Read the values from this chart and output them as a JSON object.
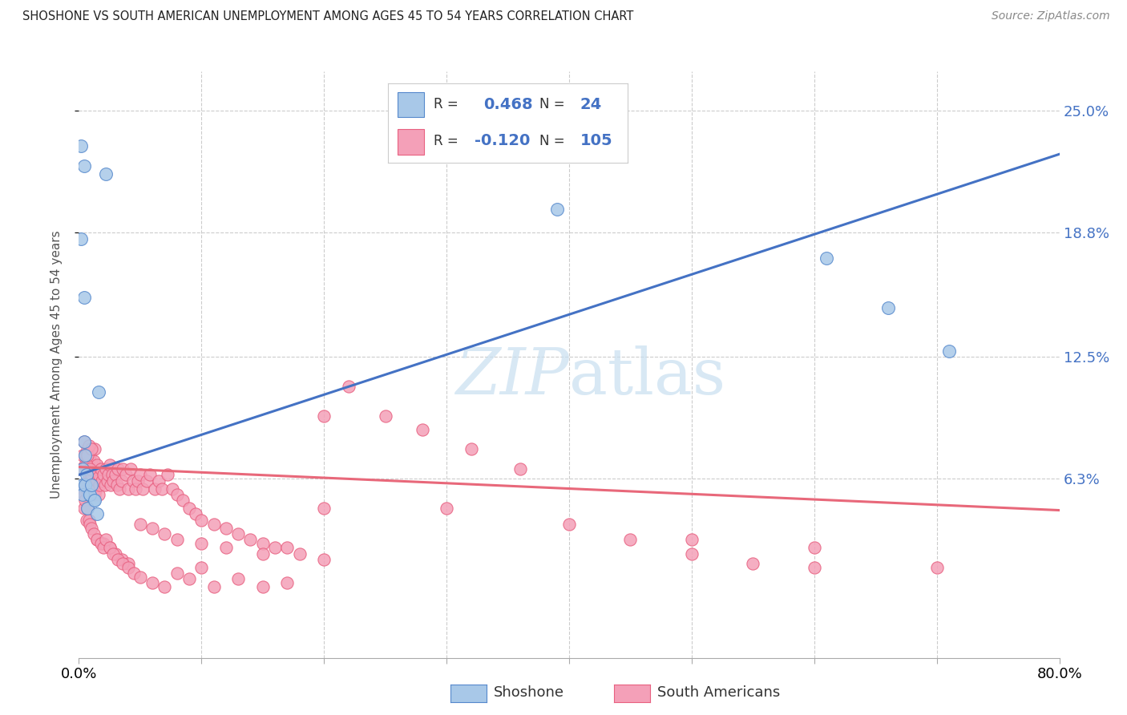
{
  "title": "SHOSHONE VS SOUTH AMERICAN UNEMPLOYMENT AMONG AGES 45 TO 54 YEARS CORRELATION CHART",
  "source": "Source: ZipAtlas.com",
  "ylabel": "Unemployment Among Ages 45 to 54 years",
  "xlim": [
    0.0,
    0.8
  ],
  "ylim": [
    -0.028,
    0.27
  ],
  "ytick_vals": [
    0.063,
    0.125,
    0.188,
    0.25
  ],
  "ytick_labels": [
    "6.3%",
    "12.5%",
    "18.8%",
    "25.0%"
  ],
  "xtick_vals": [
    0.0,
    0.1,
    0.2,
    0.3,
    0.4,
    0.5,
    0.6,
    0.7,
    0.8
  ],
  "xtick_labels": [
    "0.0%",
    "",
    "",
    "",
    "",
    "",
    "",
    "",
    "80.0%"
  ],
  "shoshone_R": 0.468,
  "shoshone_N": 24,
  "sa_R": -0.12,
  "sa_N": 105,
  "blue_scatter": "#A8C8E8",
  "pink_scatter": "#F4A0B8",
  "blue_edge": "#5588CC",
  "pink_edge": "#E86080",
  "blue_line": "#4472C4",
  "pink_line": "#E8687A",
  "watermark_color": "#C8DFF0",
  "blue_line_x": [
    0.0,
    0.8
  ],
  "blue_line_y": [
    0.065,
    0.228
  ],
  "pink_line_x": [
    0.0,
    0.8
  ],
  "pink_line_y": [
    0.069,
    0.047
  ],
  "shoshone_x": [
    0.002,
    0.004,
    0.022,
    0.002,
    0.004,
    0.004,
    0.005,
    0.003,
    0.003,
    0.008,
    0.012,
    0.016,
    0.003,
    0.005,
    0.006,
    0.007,
    0.009,
    0.01,
    0.013,
    0.015,
    0.39,
    0.61,
    0.66,
    0.71
  ],
  "shoshone_y": [
    0.232,
    0.222,
    0.218,
    0.185,
    0.155,
    0.082,
    0.075,
    0.068,
    0.06,
    0.055,
    0.052,
    0.107,
    0.055,
    0.06,
    0.065,
    0.048,
    0.055,
    0.06,
    0.052,
    0.045,
    0.2,
    0.175,
    0.15,
    0.128
  ],
  "sa_x": [
    0.002,
    0.003,
    0.003,
    0.004,
    0.004,
    0.005,
    0.005,
    0.006,
    0.006,
    0.007,
    0.007,
    0.008,
    0.008,
    0.009,
    0.009,
    0.01,
    0.01,
    0.011,
    0.011,
    0.012,
    0.012,
    0.013,
    0.013,
    0.014,
    0.014,
    0.015,
    0.015,
    0.016,
    0.016,
    0.017,
    0.018,
    0.019,
    0.02,
    0.021,
    0.022,
    0.023,
    0.024,
    0.025,
    0.026,
    0.027,
    0.028,
    0.03,
    0.031,
    0.032,
    0.033,
    0.035,
    0.036,
    0.038,
    0.04,
    0.042,
    0.044,
    0.046,
    0.048,
    0.05,
    0.052,
    0.055,
    0.058,
    0.062,
    0.065,
    0.068,
    0.072,
    0.076,
    0.08,
    0.085,
    0.09,
    0.095,
    0.1,
    0.11,
    0.12,
    0.13,
    0.14,
    0.15,
    0.16,
    0.17,
    0.18,
    0.2,
    0.22,
    0.25,
    0.28,
    0.32,
    0.36,
    0.4,
    0.45,
    0.5,
    0.55,
    0.6,
    0.006,
    0.007,
    0.008,
    0.009,
    0.01,
    0.015,
    0.02,
    0.025,
    0.03,
    0.035,
    0.04,
    0.05,
    0.06,
    0.07,
    0.08,
    0.1,
    0.12,
    0.15,
    0.2
  ],
  "sa_y": [
    0.068,
    0.075,
    0.058,
    0.082,
    0.055,
    0.07,
    0.06,
    0.075,
    0.058,
    0.078,
    0.062,
    0.065,
    0.07,
    0.062,
    0.075,
    0.065,
    0.058,
    0.068,
    0.07,
    0.072,
    0.06,
    0.055,
    0.078,
    0.065,
    0.058,
    0.07,
    0.062,
    0.065,
    0.055,
    0.06,
    0.068,
    0.062,
    0.065,
    0.06,
    0.068,
    0.062,
    0.065,
    0.07,
    0.06,
    0.065,
    0.062,
    0.065,
    0.06,
    0.068,
    0.058,
    0.062,
    0.068,
    0.065,
    0.058,
    0.068,
    0.062,
    0.058,
    0.062,
    0.065,
    0.058,
    0.062,
    0.065,
    0.058,
    0.062,
    0.058,
    0.065,
    0.058,
    0.055,
    0.052,
    0.048,
    0.045,
    0.042,
    0.04,
    0.038,
    0.035,
    0.032,
    0.03,
    0.028,
    0.028,
    0.025,
    0.095,
    0.11,
    0.095,
    0.088,
    0.078,
    0.068,
    0.04,
    0.032,
    0.025,
    0.02,
    0.018,
    0.07,
    0.075,
    0.08,
    0.068,
    0.078,
    0.032,
    0.03,
    0.028,
    0.025,
    0.022,
    0.02,
    0.04,
    0.038,
    0.035,
    0.032,
    0.03,
    0.028,
    0.025,
    0.022
  ],
  "sa_x_extra": [
    0.004,
    0.005,
    0.006,
    0.007,
    0.008,
    0.009,
    0.01,
    0.012,
    0.015,
    0.018,
    0.02,
    0.022,
    0.025,
    0.028,
    0.032,
    0.036,
    0.04,
    0.045,
    0.05,
    0.06,
    0.07,
    0.08,
    0.09,
    0.1,
    0.11,
    0.13,
    0.15,
    0.17,
    0.2,
    0.3,
    0.5,
    0.6,
    0.7
  ],
  "sa_y_extra": [
    0.048,
    0.052,
    0.042,
    0.048,
    0.042,
    0.04,
    0.038,
    0.035,
    0.032,
    0.03,
    0.028,
    0.032,
    0.028,
    0.025,
    0.022,
    0.02,
    0.018,
    0.015,
    0.013,
    0.01,
    0.008,
    0.015,
    0.012,
    0.018,
    0.008,
    0.012,
    0.008,
    0.01,
    0.048,
    0.048,
    0.032,
    0.028,
    0.018
  ]
}
